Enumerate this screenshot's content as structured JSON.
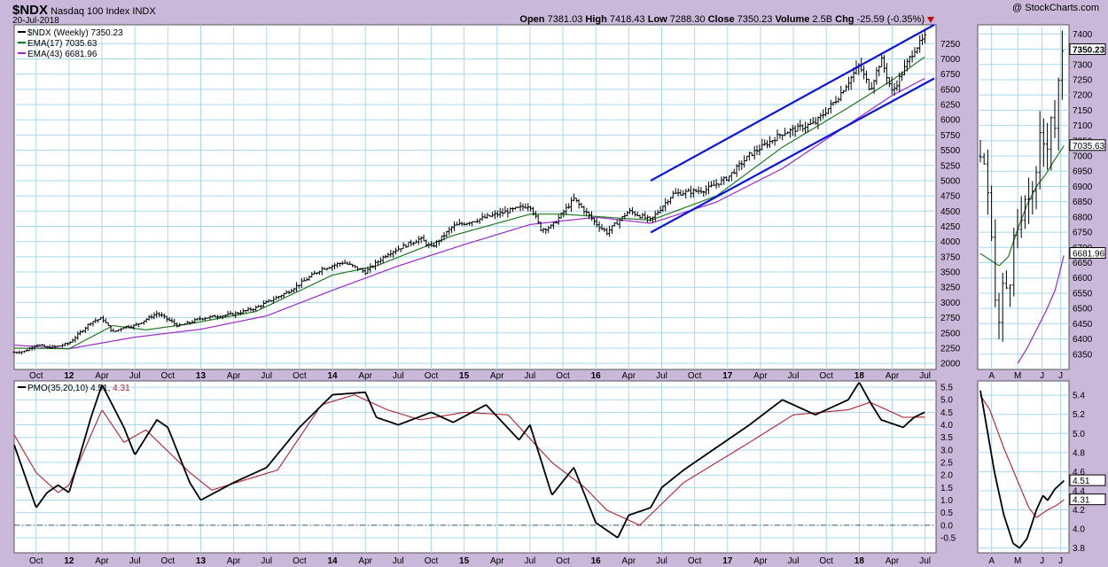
{
  "header": {
    "symbol": "$NDX",
    "name": "Nasdaq 100 Index",
    "exchange": "INDX",
    "date": "20-Jul-2018",
    "copyright": "@ StockCharts.com",
    "open_label": "Open",
    "open": "7381.03",
    "high_label": "High",
    "high": "7418.43",
    "low_label": "Low",
    "low": "7288.30",
    "close_label": "Close",
    "close": "7350.23",
    "volume_label": "Volume",
    "volume": "2.5B",
    "chg_label": "Chg",
    "chg": "-25.59 (-0.35%)"
  },
  "colors": {
    "background": "#c9b8da",
    "panel": "#ffffff",
    "grid": "#a8d8ec",
    "ema17": "#1e7a1e",
    "ema43": "#9a28c8",
    "trendline": "#0a14d8",
    "signal": "#b0202c",
    "down_arrow": "#cc0000"
  },
  "chart_data": [
    {
      "type": "ohlc",
      "panel": "price-weekly",
      "legend": [
        {
          "label": "$NDX (Weekly) 7350.23",
          "color": "#000000"
        },
        {
          "label": "EMA(17) 7035.63",
          "color": "#1e7a1e"
        },
        {
          "label": "EMA(43) 6681.96",
          "color": "#9a28c8"
        }
      ],
      "x_tick_labels": [
        "Oct",
        "12",
        "Apr",
        "Jul",
        "Oct",
        "13",
        "Apr",
        "Jul",
        "Oct",
        "14",
        "Apr",
        "Jul",
        "Oct",
        "15",
        "Apr",
        "Jul",
        "Oct",
        "16",
        "Apr",
        "Jul",
        "Oct",
        "17",
        "Apr",
        "Jul",
        "Oct",
        "18",
        "Apr",
        "Jul"
      ],
      "x_range": [
        "2011-08",
        "2018-07"
      ],
      "y_ticks": [
        2000,
        2250,
        2500,
        2750,
        3000,
        3250,
        3500,
        3750,
        4000,
        4250,
        4500,
        4750,
        5000,
        5250,
        5500,
        5750,
        6000,
        6250,
        6500,
        6750,
        7000,
        7250
      ],
      "ylim": [
        1900,
        7560
      ],
      "close_path": [
        [
          "2011-08",
          2180
        ],
        [
          "2011-09",
          2200
        ],
        [
          "2011-10",
          2310
        ],
        [
          "2011-11",
          2260
        ],
        [
          "2011-12",
          2280
        ],
        [
          "2012-01",
          2330
        ],
        [
          "2012-03",
          2680
        ],
        [
          "2012-04",
          2740
        ],
        [
          "2012-05",
          2510
        ],
        [
          "2012-06",
          2600
        ],
        [
          "2012-07",
          2620
        ],
        [
          "2012-09",
          2820
        ],
        [
          "2012-10",
          2720
        ],
        [
          "2012-11",
          2610
        ],
        [
          "2012-12",
          2670
        ],
        [
          "2013-01",
          2740
        ],
        [
          "2013-04",
          2810
        ],
        [
          "2013-06",
          2910
        ],
        [
          "2013-07",
          3000
        ],
        [
          "2013-09",
          3180
        ],
        [
          "2013-12",
          3550
        ],
        [
          "2014-02",
          3660
        ],
        [
          "2014-04",
          3500
        ],
        [
          "2014-06",
          3800
        ],
        [
          "2014-09",
          4050
        ],
        [
          "2014-10",
          3900
        ],
        [
          "2014-12",
          4250
        ],
        [
          "2015-03",
          4400
        ],
        [
          "2015-07",
          4600
        ],
        [
          "2015-08",
          4200
        ],
        [
          "2015-09",
          4250
        ],
        [
          "2015-11",
          4700
        ],
        [
          "2016-01",
          4300
        ],
        [
          "2016-02",
          4150
        ],
        [
          "2016-04",
          4500
        ],
        [
          "2016-06",
          4350
        ],
        [
          "2016-08",
          4780
        ],
        [
          "2016-11",
          4850
        ],
        [
          "2017-01",
          5050
        ],
        [
          "2017-03",
          5420
        ],
        [
          "2017-06",
          5780
        ],
        [
          "2017-09",
          5950
        ],
        [
          "2017-11",
          6350
        ],
        [
          "2018-01",
          6900
        ],
        [
          "2018-02",
          6500
        ],
        [
          "2018-03",
          7000
        ],
        [
          "2018-04",
          6450
        ],
        [
          "2018-06",
          7150
        ],
        [
          "2018-07",
          7350.23
        ]
      ],
      "ema17_path": [
        [
          "2011-08",
          2250
        ],
        [
          "2012-01",
          2240
        ],
        [
          "2012-05",
          2620
        ],
        [
          "2012-08",
          2550
        ],
        [
          "2012-12",
          2650
        ],
        [
          "2013-06",
          2850
        ],
        [
          "2014-01",
          3450
        ],
        [
          "2014-05",
          3600
        ],
        [
          "2014-12",
          4100
        ],
        [
          "2015-07",
          4450
        ],
        [
          "2015-10",
          4450
        ],
        [
          "2016-02",
          4400
        ],
        [
          "2016-06",
          4350
        ],
        [
          "2016-12",
          4750
        ],
        [
          "2017-06",
          5550
        ],
        [
          "2017-12",
          6200
        ],
        [
          "2018-04",
          6650
        ],
        [
          "2018-07",
          7035.63
        ]
      ],
      "ema43_path": [
        [
          "2011-08",
          2300
        ],
        [
          "2012-01",
          2240
        ],
        [
          "2012-07",
          2430
        ],
        [
          "2013-01",
          2560
        ],
        [
          "2013-07",
          2780
        ],
        [
          "2014-01",
          3200
        ],
        [
          "2014-07",
          3600
        ],
        [
          "2015-01",
          3950
        ],
        [
          "2015-07",
          4280
        ],
        [
          "2016-01",
          4400
        ],
        [
          "2016-06",
          4300
        ],
        [
          "2016-12",
          4650
        ],
        [
          "2017-06",
          5200
        ],
        [
          "2017-12",
          5920
        ],
        [
          "2018-04",
          6400
        ],
        [
          "2018-07",
          6681.96
        ]
      ],
      "channel_upper": [
        [
          "2016-06-01",
          5000
        ],
        [
          "2018-07-27",
          7560
        ]
      ],
      "channel_lower": [
        [
          "2016-06-01",
          4150
        ],
        [
          "2018-07-27",
          6680
        ]
      ]
    },
    {
      "type": "line",
      "panel": "pmo-weekly",
      "legend": [
        {
          "label": "PMO(35,20,10) 4.51, 4.31",
          "color": "#000000"
        }
      ],
      "y_ticks": [
        -0.5,
        0.0,
        0.5,
        1.0,
        1.5,
        2.0,
        2.5,
        3.0,
        3.5,
        4.0,
        4.5,
        5.0,
        5.5
      ],
      "ylim": [
        -1.1,
        5.75
      ],
      "zero_line": 0.0,
      "series": [
        {
          "name": "PMO",
          "color": "#000000",
          "values": [
            [
              "2011-08",
              3.2
            ],
            [
              "2011-10",
              0.7
            ],
            [
              "2011-11",
              1.3
            ],
            [
              "2011-12",
              1.6
            ],
            [
              "2012-01",
              1.3
            ],
            [
              "2012-03",
              4.3
            ],
            [
              "2012-04",
              5.6
            ],
            [
              "2012-06",
              3.9
            ],
            [
              "2012-07",
              2.8
            ],
            [
              "2012-09",
              4.2
            ],
            [
              "2012-10",
              3.9
            ],
            [
              "2012-12",
              1.7
            ],
            [
              "2013-01",
              1.0
            ],
            [
              "2013-04",
              1.7
            ],
            [
              "2013-07",
              2.3
            ],
            [
              "2013-10",
              3.9
            ],
            [
              "2014-01",
              5.2
            ],
            [
              "2014-04",
              5.3
            ],
            [
              "2014-05",
              4.3
            ],
            [
              "2014-07",
              4.0
            ],
            [
              "2014-10",
              4.5
            ],
            [
              "2014-12",
              4.1
            ],
            [
              "2015-03",
              4.8
            ],
            [
              "2015-06",
              3.4
            ],
            [
              "2015-07",
              4.0
            ],
            [
              "2015-09",
              1.2
            ],
            [
              "2015-11",
              2.3
            ],
            [
              "2016-01",
              0.1
            ],
            [
              "2016-03",
              -0.5
            ],
            [
              "2016-04",
              0.4
            ],
            [
              "2016-06",
              0.7
            ],
            [
              "2016-07",
              1.5
            ],
            [
              "2016-09",
              2.2
            ],
            [
              "2016-12",
              3.1
            ],
            [
              "2017-03",
              4.0
            ],
            [
              "2017-06",
              5.0
            ],
            [
              "2017-09",
              4.4
            ],
            [
              "2017-12",
              5.0
            ],
            [
              "2018-01",
              5.7
            ],
            [
              "2018-02",
              4.9
            ],
            [
              "2018-03",
              4.2
            ],
            [
              "2018-05",
              3.9
            ],
            [
              "2018-06",
              4.3
            ],
            [
              "2018-07",
              4.51
            ]
          ]
        },
        {
          "name": "Signal",
          "color": "#b0202c",
          "values": [
            [
              "2011-08",
              3.6
            ],
            [
              "2011-10",
              2.1
            ],
            [
              "2011-12",
              1.3
            ],
            [
              "2012-01",
              1.6
            ],
            [
              "2012-04",
              4.6
            ],
            [
              "2012-06",
              3.3
            ],
            [
              "2012-08",
              3.8
            ],
            [
              "2012-12",
              2.1
            ],
            [
              "2013-02",
              1.4
            ],
            [
              "2013-08",
              2.2
            ],
            [
              "2013-12",
              4.8
            ],
            [
              "2014-03",
              5.2
            ],
            [
              "2014-06",
              4.6
            ],
            [
              "2014-09",
              4.2
            ],
            [
              "2015-01",
              4.5
            ],
            [
              "2015-05",
              4.4
            ],
            [
              "2015-09",
              2.5
            ],
            [
              "2015-12",
              1.5
            ],
            [
              "2016-02",
              0.6
            ],
            [
              "2016-05",
              0.0
            ],
            [
              "2016-09",
              1.7
            ],
            [
              "2017-03",
              3.3
            ],
            [
              "2017-07",
              4.4
            ],
            [
              "2017-12",
              4.6
            ],
            [
              "2018-02",
              4.9
            ],
            [
              "2018-05",
              4.3
            ],
            [
              "2018-07",
              4.31
            ]
          ]
        }
      ]
    },
    {
      "type": "ohlc",
      "panel": "price-daily",
      "x_tick_labels": [
        "A",
        "M",
        "J",
        "J"
      ],
      "y_ticks": [
        6350,
        6400,
        6450,
        6500,
        6550,
        6600,
        6650,
        6700,
        6750,
        6800,
        6850,
        6900,
        6950,
        7000,
        7050,
        7100,
        7150,
        7200,
        7250,
        7300,
        7350,
        7400
      ],
      "ylim": [
        6300,
        7430
      ],
      "price_tag": "7350.23",
      "ema17_tag": "7035.63",
      "ema43_tag": "6681.96",
      "close_path": [
        [
          0,
          7000
        ],
        [
          4,
          6980
        ],
        [
          10,
          6800
        ],
        [
          15,
          6550
        ],
        [
          20,
          6450
        ],
        [
          25,
          6600
        ],
        [
          30,
          6550
        ],
        [
          35,
          6700
        ],
        [
          40,
          6750
        ],
        [
          45,
          6800
        ],
        [
          50,
          6850
        ],
        [
          55,
          6900
        ],
        [
          60,
          6920
        ],
        [
          65,
          7100
        ],
        [
          70,
          7000
        ],
        [
          75,
          7150
        ],
        [
          80,
          7100
        ],
        [
          85,
          7280
        ],
        [
          90,
          7350.23
        ]
      ],
      "ema17_path": [
        [
          0,
          6680
        ],
        [
          10,
          6660
        ],
        [
          20,
          6640
        ],
        [
          30,
          6670
        ],
        [
          40,
          6760
        ],
        [
          50,
          6840
        ],
        [
          60,
          6900
        ],
        [
          70,
          6940
        ],
        [
          80,
          6990
        ],
        [
          90,
          7035.63
        ]
      ],
      "ema43_path": [
        [
          40,
          6320
        ],
        [
          50,
          6370
        ],
        [
          60,
          6430
        ],
        [
          70,
          6490
        ],
        [
          80,
          6560
        ],
        [
          90,
          6681.96
        ]
      ]
    },
    {
      "type": "line",
      "panel": "pmo-daily",
      "y_ticks": [
        3.8,
        4.0,
        4.2,
        4.4,
        4.6,
        4.8,
        5.0,
        5.2,
        5.4
      ],
      "ylim": [
        3.75,
        5.55
      ],
      "pmo_tag": "4.51",
      "signal_tag": "4.31",
      "series": [
        {
          "name": "PMO",
          "color": "#000000",
          "values": [
            [
              0,
              5.45
            ],
            [
              8,
              5.0
            ],
            [
              15,
              4.6
            ],
            [
              25,
              4.15
            ],
            [
              35,
              3.85
            ],
            [
              42,
              3.8
            ],
            [
              50,
              3.9
            ],
            [
              60,
              4.2
            ],
            [
              67,
              4.35
            ],
            [
              72,
              4.3
            ],
            [
              80,
              4.42
            ],
            [
              90,
              4.51
            ]
          ]
        },
        {
          "name": "Signal",
          "color": "#b0202c",
          "values": [
            [
              0,
              5.4
            ],
            [
              10,
              5.25
            ],
            [
              25,
              4.85
            ],
            [
              40,
              4.5
            ],
            [
              52,
              4.22
            ],
            [
              60,
              4.12
            ],
            [
              72,
              4.2
            ],
            [
              82,
              4.25
            ],
            [
              90,
              4.31
            ]
          ]
        }
      ]
    }
  ]
}
